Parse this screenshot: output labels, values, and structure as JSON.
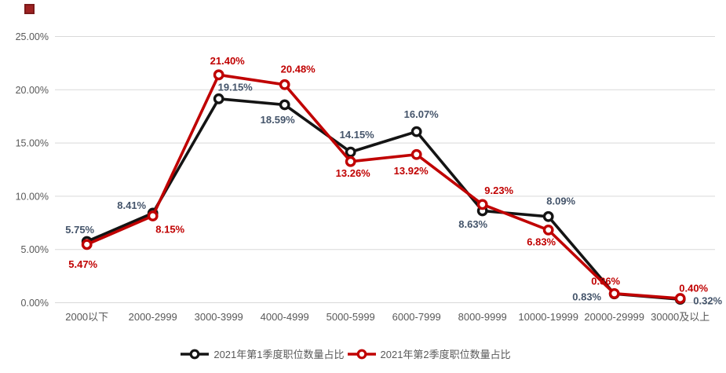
{
  "decor": {
    "corner_square_color": "#9e2222"
  },
  "chart_data": {
    "type": "line",
    "title": "",
    "xlabel": "",
    "ylabel": "",
    "grid": true,
    "legend_position": "bottom",
    "categories": [
      "2000以下",
      "2000-2999",
      "3000-3999",
      "4000-4999",
      "5000-5999",
      "6000-7999",
      "8000-9999",
      "10000-19999",
      "20000-29999",
      "30000及以上"
    ],
    "y_axis": {
      "min": 0,
      "max": 25,
      "step": 5,
      "ticks": [
        "0.00%",
        "5.00%",
        "10.00%",
        "15.00%",
        "20.00%",
        "25.00%"
      ],
      "tick_color": "#595959",
      "grid_color": "#d9d9d9"
    },
    "series": [
      {
        "name": "2021年第1季度职位数量占比",
        "color": "#141414",
        "label_color": "#44546a",
        "values": [
          5.75,
          8.41,
          19.15,
          18.59,
          14.15,
          16.07,
          8.63,
          8.09,
          0.83,
          0.32
        ],
        "labels": [
          "5.75%",
          "8.41%",
          "19.15%",
          "18.59%",
          "14.15%",
          "16.07%",
          "8.63%",
          "8.09%",
          "0.83%",
          "0.32%"
        ]
      },
      {
        "name": "2021年第2季度职位数量占比",
        "color": "#c00000",
        "label_color": "#c00000",
        "values": [
          5.47,
          8.15,
          21.4,
          20.48,
          13.26,
          13.92,
          9.23,
          6.83,
          0.86,
          0.4
        ],
        "labels": [
          "5.47%",
          "8.15%",
          "21.40%",
          "20.48%",
          "13.26%",
          "13.92%",
          "9.23%",
          "6.83%",
          "0.86%",
          "0.40%"
        ]
      }
    ]
  }
}
